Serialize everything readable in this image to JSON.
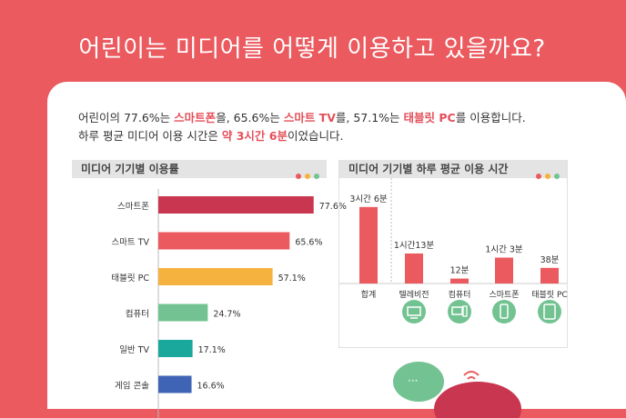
{
  "title": "어린이는 미디어를 어떻게 이용하고 있을까요?",
  "summary": {
    "line1": [
      {
        "t": "어린이의 77.6%는 ",
        "hl": false
      },
      {
        "t": "스마트폰",
        "hl": true
      },
      {
        "t": "을, 65.6%는 ",
        "hl": false
      },
      {
        "t": "스마트 TV",
        "hl": true
      },
      {
        "t": "를, 57.1%는 ",
        "hl": false
      },
      {
        "t": "태블릿 PC",
        "hl": true
      },
      {
        "t": "를 이용합니다.",
        "hl": false
      }
    ],
    "line2": [
      {
        "t": "하루 평균 미디어 이용 시간은 ",
        "hl": false
      },
      {
        "t": "약 3시간 6분",
        "hl": true
      },
      {
        "t": "이었습니다.",
        "hl": false
      }
    ]
  },
  "colors": {
    "accent": "#e4505a",
    "bg": "#ea5a5f",
    "dot1": "#ea5a5f",
    "dot2": "#f6b23e",
    "dot3": "#73c392"
  },
  "chart_data": [
    {
      "type": "bar",
      "title": "미디어 기기별 이용률",
      "orientation": "horizontal",
      "categories": [
        "스마트폰",
        "스마트 TV",
        "태블릿 PC",
        "컴퓨터",
        "일반 TV",
        "게임 콘솔"
      ],
      "values": [
        77.6,
        65.6,
        57.1,
        24.7,
        17.1,
        16.6
      ],
      "labels": [
        "77.6%",
        "65.6%",
        "57.1%",
        "24.7%",
        "17.1%",
        "16.6%"
      ],
      "colors": [
        "#c8364f",
        "#ea5a5f",
        "#f6b23e",
        "#73c392",
        "#1aa79c",
        "#3f63b5"
      ],
      "xlim": [
        0,
        100
      ]
    },
    {
      "type": "bar",
      "title": "미디어 기기별 하루 평균 이용 시간",
      "categories": [
        "합계",
        "텔레비전",
        "컴퓨터",
        "스마트폰",
        "태블릿 PC"
      ],
      "values": [
        186,
        73,
        12,
        63,
        38
      ],
      "labels": [
        "3시간 6분",
        "1시간13분",
        "12분",
        "1시간 3분",
        "38분"
      ],
      "icons": [
        "",
        "tv-icon",
        "computer-icon",
        "smartphone-icon",
        "tablet-icon"
      ],
      "color": "#ea5a5f",
      "ylim": [
        0,
        190
      ]
    }
  ]
}
